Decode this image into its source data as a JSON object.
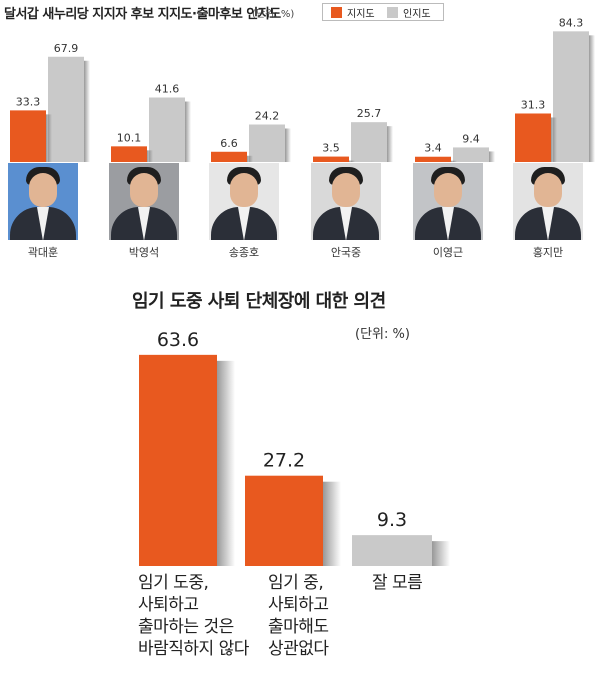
{
  "colors": {
    "support": "#e8591f",
    "awareness": "#c9c9c9"
  },
  "chart_data": [
    {
      "type": "bar",
      "title": "달서갑 새누리당 지지자 후보 지지도·출마후보 인지도",
      "unit": "(단위: %)",
      "categories": [
        "곽대훈",
        "박영석",
        "송종호",
        "안국중",
        "이영근",
        "홍지만"
      ],
      "series": [
        {
          "name": "지지도",
          "values": [
            33.3,
            10.1,
            6.6,
            3.5,
            3.4,
            31.3
          ]
        },
        {
          "name": "인지도",
          "values": [
            67.9,
            41.6,
            24.2,
            25.7,
            9.4,
            84.3
          ]
        }
      ],
      "legend": "top-right",
      "ylim": [
        0,
        100
      ]
    },
    {
      "type": "bar",
      "title": "임기 도중 사퇴 단체장에 대한 의견",
      "unit": "(단위: %)",
      "categories": [
        "임기 도중,\n사퇴하고\n출마하는 것은\n바람직하지 않다",
        "임기 중,\n사퇴하고\n출마해도\n상관없다",
        "잘 모름"
      ],
      "values": [
        63.6,
        27.2,
        9.3
      ],
      "ylim": [
        0,
        70
      ]
    }
  ]
}
